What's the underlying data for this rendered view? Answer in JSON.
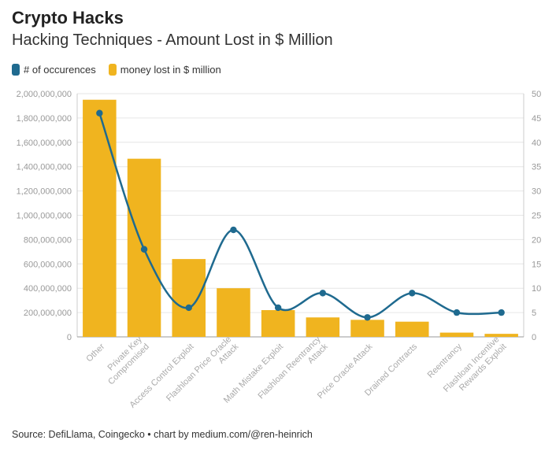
{
  "header": {
    "title": "Crypto Hacks",
    "subtitle": "Hacking Techniques - Amount Lost in $ Million"
  },
  "legend": [
    {
      "label": "# of occurences",
      "color": "#1f6a8f"
    },
    {
      "label": "money lost in $ million",
      "color": "#f0b41f"
    }
  ],
  "footer": {
    "source": "Source: DefiLlama, Coingecko • chart by medium.com/@ren-heinrich"
  },
  "chart_data": {
    "type": "bar",
    "categories": [
      "Other",
      "Private Key Compromised",
      "Access Control Exploit",
      "Flashloan Price Oracle Attack",
      "Math Mistake Exploit",
      "Flashloan Reentrancy Attack",
      "Price Oracle Attack",
      "Drained Contracts",
      "Reentrancy",
      "Flashloan Incentive Rewards Exploit"
    ],
    "category_lines": [
      [
        "Other"
      ],
      [
        "Private Key",
        "Compromised"
      ],
      [
        "Access Control Exploit"
      ],
      [
        "Flashloan Price Oracle",
        "Attack"
      ],
      [
        "Math Mistake Exploit"
      ],
      [
        "Flashloan Reentrancy",
        "Attack"
      ],
      [
        "Price Oracle Attack"
      ],
      [
        "Drained Contracts"
      ],
      [
        "Reentrancy"
      ],
      [
        "Flashloan Incentive",
        "Rewards Exploit"
      ]
    ],
    "series": [
      {
        "name": "money lost in $ million",
        "type": "bar",
        "axis": "left",
        "color": "#f0b41f",
        "values": [
          1950000000,
          1465000000,
          640000000,
          400000000,
          220000000,
          160000000,
          140000000,
          125000000,
          35000000,
          25000000
        ]
      },
      {
        "name": "# of occurences",
        "type": "line",
        "axis": "right",
        "color": "#1f6a8f",
        "values": [
          46,
          18,
          6,
          22,
          6,
          9,
          4,
          9,
          5,
          5
        ]
      }
    ],
    "y_left": {
      "min": 0,
      "max": 2000000000,
      "ticks": [
        "0",
        "200,000,000",
        "400,000,000",
        "600,000,000",
        "800,000,000",
        "1,000,000,000",
        "1,200,000,000",
        "1,400,000,000",
        "1,600,000,000",
        "1,800,000,000",
        "2,000,000,000"
      ]
    },
    "y_right": {
      "min": 0,
      "max": 50,
      "ticks": [
        "0",
        "5",
        "10",
        "15",
        "20",
        "25",
        "30",
        "35",
        "40",
        "45",
        "50"
      ]
    },
    "grid": true,
    "legend_position": "top-left"
  }
}
